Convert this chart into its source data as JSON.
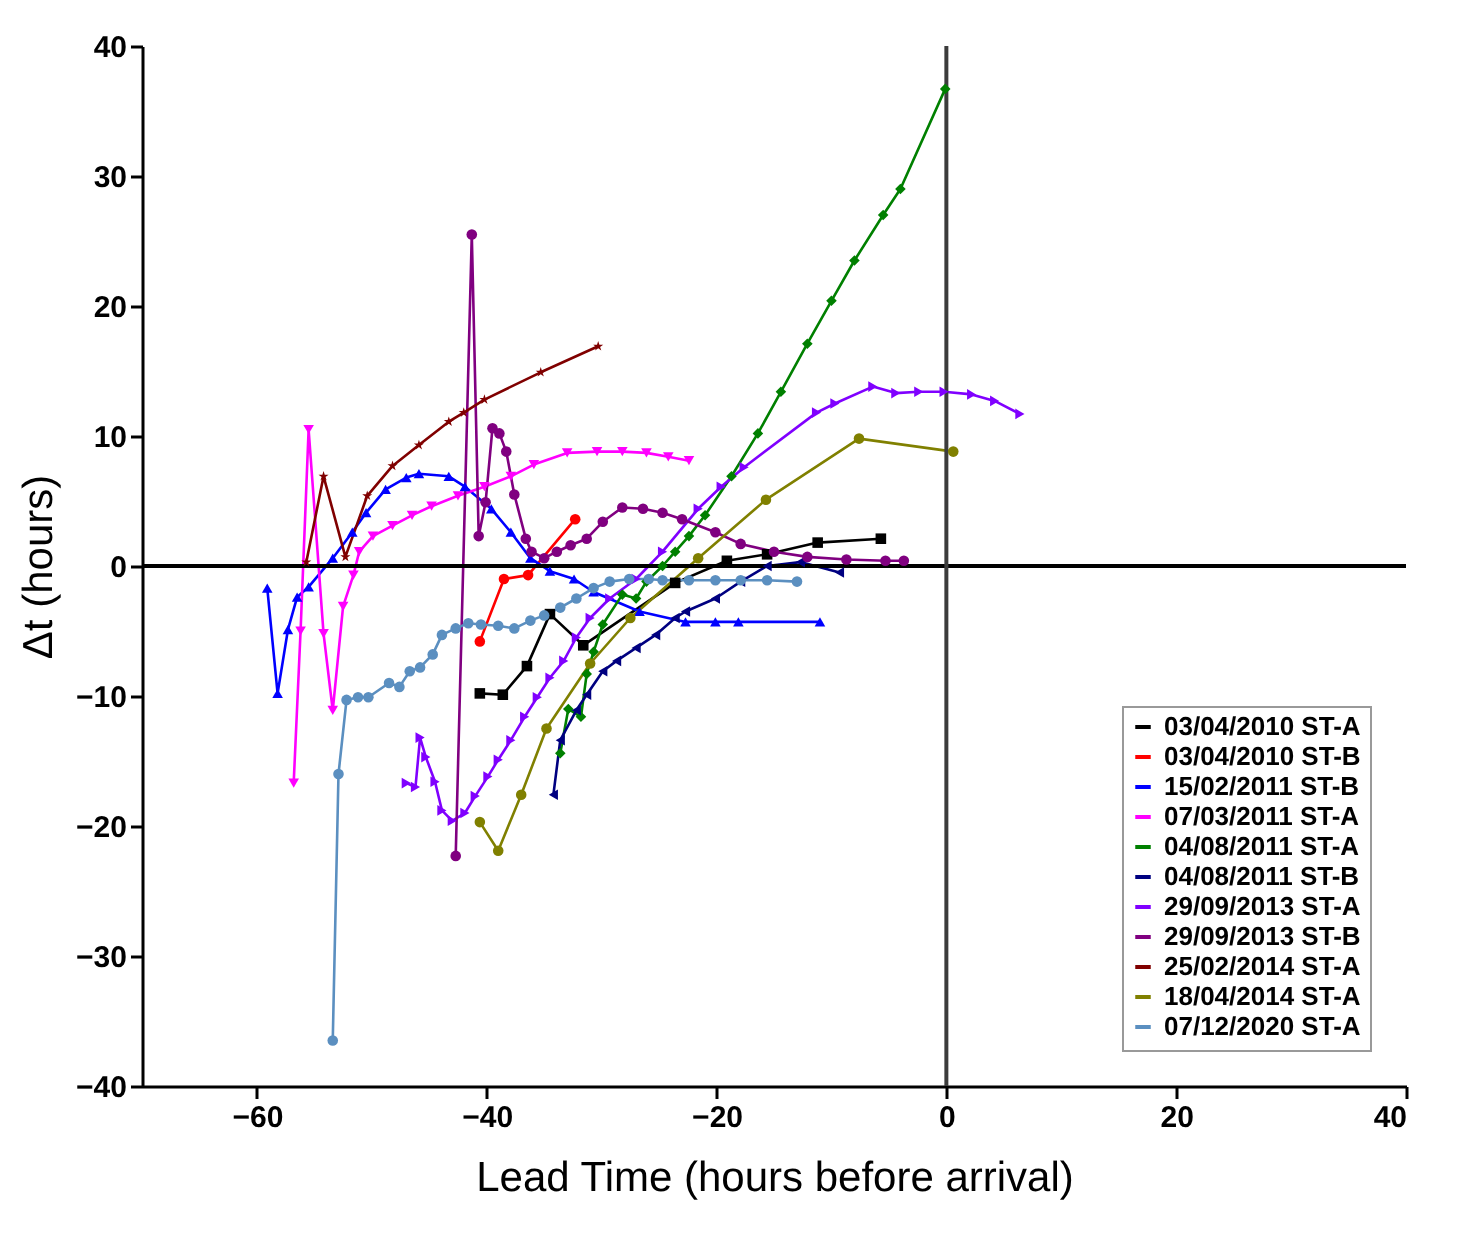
{
  "chart_data": {
    "type": "line",
    "xlabel": "Lead Time (hours before arrival)",
    "ylabel": "Δt (hours)",
    "xlim": [
      -70,
      40
    ],
    "xticks": [
      -60,
      -40,
      -20,
      0,
      20,
      40
    ],
    "ylim": [
      -40,
      40
    ],
    "yticks": [
      -40,
      -30,
      -20,
      -10,
      0,
      10,
      20,
      30,
      40
    ],
    "grid": false,
    "legend": "bottom right",
    "ref_lines": [
      {
        "axis": "y",
        "value": 0,
        "color": "#000000"
      },
      {
        "axis": "x",
        "value": 0,
        "color": "#3c3c3c"
      }
    ],
    "series": [
      {
        "name": "03/04/2010 ST-A",
        "color": "#000000",
        "marker": "square",
        "x": [
          -40.6,
          -38.6,
          -36.5,
          -34.5,
          -31.6,
          -23.6,
          -19.1,
          -15.6,
          -11.2,
          -5.7
        ],
        "values": [
          -9.8,
          -9.9,
          -7.7,
          -3.7,
          -6.1,
          -1.3,
          0.4,
          0.9,
          1.8,
          2.1
        ]
      },
      {
        "name": "03/04/2010 ST-B",
        "color": "#ff0000",
        "marker": "circle",
        "x": [
          -40.6,
          -38.5,
          -36.4,
          -32.3
        ],
        "values": [
          -5.8,
          -1.0,
          -0.7,
          3.6
        ]
      },
      {
        "name": "15/02/2011 ST-B",
        "color": "#0000ff",
        "marker": "triangle",
        "x": [
          -59.1,
          -58.2,
          -57.3,
          -56.5,
          -55.5,
          -53.4,
          -51.7,
          -50.5,
          -48.8,
          -47.0,
          -45.9,
          -43.3,
          -41.9,
          -39.6,
          -37.9,
          -36.2,
          -34.5,
          -32.4,
          -30.7,
          -26.7,
          -22.7,
          -20.1,
          -18.1,
          -11.0
        ],
        "values": [
          -1.7,
          -9.8,
          -4.9,
          -2.4,
          -1.6,
          0.6,
          2.6,
          4.1,
          5.9,
          6.8,
          7.1,
          6.9,
          6.1,
          4.4,
          2.6,
          0.6,
          -0.4,
          -1.0,
          -2.0,
          -3.5,
          -4.3,
          -4.3,
          -4.3,
          -4.3
        ]
      },
      {
        "name": "07/03/2011 ST-A",
        "color": "#ff00ff",
        "marker": "triangle",
        "x": [
          -56.8,
          -56.2,
          -55.5,
          -54.2,
          -53.4,
          -52.5,
          -51.6,
          -51.1,
          -49.9,
          -48.2,
          -46.5,
          -44.8,
          -42.5,
          -40.2,
          -37.9,
          -35.9,
          -33.0,
          -30.4,
          -28.2,
          -26.1,
          -24.2,
          -22.4
        ],
        "values": [
          -16.7,
          -5.0,
          10.5,
          -5.2,
          -11.1,
          -3.1,
          -0.7,
          1.1,
          2.3,
          3.1,
          3.9,
          4.6,
          5.4,
          6.1,
          6.9,
          7.8,
          8.7,
          8.8,
          8.8,
          8.7,
          8.4,
          8.1
        ]
      },
      {
        "name": "04/08/2011 ST-A",
        "color": "#008000",
        "marker": "diamond",
        "x": [
          -33.6,
          -32.9,
          -31.8,
          -31.3,
          -30.7,
          -29.9,
          -28.2,
          -27.0,
          -26.1,
          -24.7,
          -23.6,
          -22.4,
          -21.0,
          -18.7,
          -16.4,
          -14.4,
          -12.1,
          -10.0,
          -8.0,
          -5.5,
          -4.0,
          -0.1
        ],
        "values": [
          -14.4,
          -11.0,
          -11.6,
          -8.3,
          -6.6,
          -4.5,
          -2.2,
          -2.5,
          -1.2,
          0.0,
          1.1,
          2.3,
          3.9,
          6.9,
          10.2,
          13.4,
          17.1,
          20.4,
          23.5,
          27.0,
          29.0,
          36.7
        ]
      },
      {
        "name": "04/08/2011 ST-B",
        "color": "#000080",
        "marker": "triangle",
        "x": [
          -34.2,
          -33.6,
          -32.2,
          -31.3,
          -29.9,
          -28.7,
          -27.0,
          -25.3,
          -23.6,
          -22.7,
          -20.1,
          -17.9,
          -15.6,
          -12.7,
          -9.3
        ],
        "values": [
          -17.6,
          -13.4,
          -11.1,
          -9.9,
          -8.1,
          -7.3,
          -6.3,
          -5.3,
          -4.0,
          -3.5,
          -2.5,
          -1.2,
          0.0,
          0.3,
          -0.5
        ]
      },
      {
        "name": "29/09/2013 ST-A",
        "color": "#8000ff",
        "marker": "triangle",
        "x": [
          -47.0,
          -46.2,
          -45.8,
          -45.3,
          -44.5,
          -43.9,
          -43.0,
          -41.9,
          -41.0,
          -39.9,
          -39.0,
          -37.9,
          -36.7,
          -35.6,
          -34.5,
          -33.3,
          -32.2,
          -31.0,
          -29.3,
          -27.0,
          -24.7,
          -21.6,
          -19.6,
          -17.6,
          -11.3,
          -9.7,
          -6.4,
          -4.4,
          -2.4,
          -0.2,
          2.2,
          4.2,
          6.4
        ],
        "values": [
          -16.7,
          -17.0,
          -13.2,
          -14.7,
          -16.6,
          -18.8,
          -19.6,
          -19.0,
          -17.7,
          -16.2,
          -14.9,
          -13.4,
          -11.6,
          -10.1,
          -8.6,
          -7.3,
          -5.5,
          -4.0,
          -2.5,
          -1.0,
          1.1,
          4.4,
          6.1,
          7.6,
          11.8,
          12.5,
          13.8,
          13.3,
          13.4,
          13.4,
          13.2,
          12.7,
          11.7
        ]
      },
      {
        "name": "29/09/2013 ST-B",
        "color": "#800080",
        "marker": "circle",
        "x": [
          -42.7,
          -41.3,
          -40.7,
          -40.1,
          -39.5,
          -38.9,
          -38.3,
          -37.6,
          -36.6,
          -36.1,
          -35.0,
          -33.9,
          -32.7,
          -31.3,
          -29.9,
          -28.2,
          -26.4,
          -24.7,
          -23.0,
          -20.1,
          -17.9,
          -15.0,
          -12.1,
          -8.7,
          -5.3,
          -3.7
        ],
        "values": [
          -22.3,
          25.5,
          2.3,
          4.9,
          10.6,
          10.2,
          8.8,
          5.5,
          2.1,
          1.1,
          0.6,
          1.1,
          1.6,
          2.1,
          3.4,
          4.5,
          4.4,
          4.1,
          3.6,
          2.6,
          1.7,
          1.1,
          0.7,
          0.5,
          0.4,
          0.4
        ]
      },
      {
        "name": "25/02/2014 ST-A",
        "color": "#800000",
        "marker": "star",
        "x": [
          -55.7,
          -54.2,
          -52.3,
          -50.4,
          -48.2,
          -45.9,
          -43.3,
          -42.0,
          -40.2,
          -35.3,
          -30.3
        ],
        "values": [
          0.3,
          6.9,
          0.7,
          5.4,
          7.7,
          9.3,
          11.1,
          11.8,
          12.8,
          14.9,
          16.9
        ]
      },
      {
        "name": "18/04/2014 ST-A",
        "color": "#808000",
        "marker": "circle",
        "x": [
          -40.6,
          -39.0,
          -37.0,
          -34.8,
          -31.0,
          -27.5,
          -21.6,
          -15.7,
          -7.6,
          0.6
        ],
        "values": [
          -19.7,
          -21.9,
          -17.6,
          -12.5,
          -7.5,
          -4.0,
          0.6,
          5.1,
          9.8,
          8.8
        ]
      },
      {
        "name": "07/12/2020 ST-A",
        "color": "#5b8fc0",
        "marker": "circle",
        "x": [
          -53.4,
          -52.9,
          -52.2,
          -51.2,
          -50.3,
          -48.5,
          -47.6,
          -46.7,
          -45.8,
          -44.7,
          -43.9,
          -42.7,
          -41.6,
          -40.5,
          -39.0,
          -37.6,
          -36.2,
          -35.0,
          -33.6,
          -32.2,
          -30.7,
          -29.3,
          -27.6,
          -25.9,
          -24.7,
          -22.4,
          -20.1,
          -17.9,
          -15.6,
          -13.0
        ],
        "values": [
          -36.5,
          -16.0,
          -10.3,
          -10.1,
          -10.1,
          -9.0,
          -9.3,
          -8.1,
          -7.8,
          -6.8,
          -5.3,
          -4.8,
          -4.4,
          -4.5,
          -4.6,
          -4.8,
          -4.2,
          -3.8,
          -3.2,
          -2.5,
          -1.7,
          -1.2,
          -1.0,
          -1.0,
          -1.1,
          -1.1,
          -1.1,
          -1.1,
          -1.1,
          -1.2
        ]
      }
    ]
  }
}
